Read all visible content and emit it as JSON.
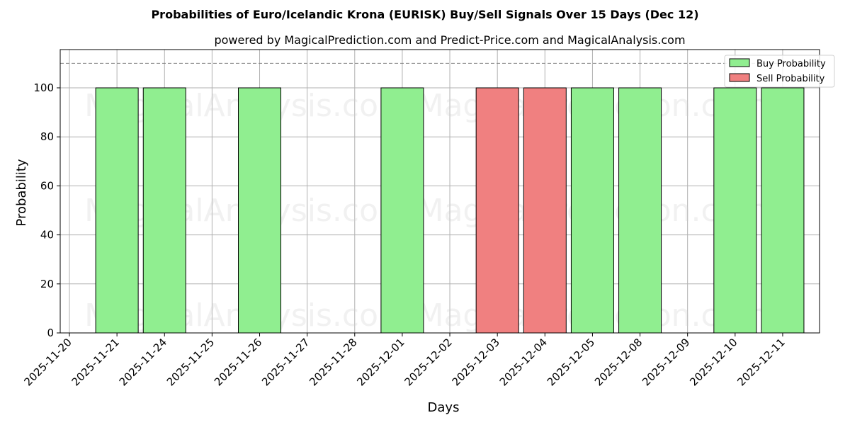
{
  "title": "Probabilities of Euro/Icelandic Krona (EURISK) Buy/Sell Signals Over 15 Days (Dec 12)",
  "subtitle": "powered by MagicalPrediction.com and Predict-Price.com and MagicalAnalysis.com",
  "watermarks": [
    "MagicalAnalysis.com",
    "MagicalPrediction.com"
  ],
  "colors": {
    "buy": "#90ee90",
    "sell": "#f08080",
    "edge": "#000000",
    "grid": "#b0b0b0",
    "reference_line": "#808080"
  },
  "legend": [
    {
      "label": "Buy Probability",
      "color": "#90ee90"
    },
    {
      "label": "Sell Probability",
      "color": "#f08080"
    }
  ],
  "chart_data": {
    "type": "bar",
    "title": "Probabilities of Euro/Icelandic Krona (EURISK) Buy/Sell Signals Over 15 Days (Dec 12)",
    "subtitle": "powered by MagicalPrediction.com and Predict-Price.com and MagicalAnalysis.com",
    "xlabel": "Days",
    "ylabel": "Probability",
    "ylim": [
      0,
      115
    ],
    "yticks": [
      0,
      20,
      40,
      60,
      80,
      100
    ],
    "reference_line": {
      "y": 110,
      "style": "dashed"
    },
    "grid": true,
    "legend_position": "upper right",
    "categories": [
      "2025-11-20",
      "2025-11-21",
      "2025-11-24",
      "2025-11-25",
      "2025-11-26",
      "2025-11-27",
      "2025-11-28",
      "2025-12-01",
      "2025-12-02",
      "2025-12-03",
      "2025-12-04",
      "2025-12-05",
      "2025-12-08",
      "2025-12-09",
      "2025-12-10",
      "2025-12-11"
    ],
    "series": [
      {
        "name": "Buy Probability",
        "color": "#90ee90",
        "values": [
          0,
          100,
          100,
          0,
          100,
          0,
          0,
          100,
          0,
          0,
          0,
          100,
          100,
          0,
          100,
          100
        ]
      },
      {
        "name": "Sell Probability",
        "color": "#f08080",
        "values": [
          0,
          0,
          0,
          0,
          0,
          0,
          0,
          0,
          0,
          100,
          100,
          0,
          0,
          0,
          0,
          0
        ]
      }
    ]
  }
}
